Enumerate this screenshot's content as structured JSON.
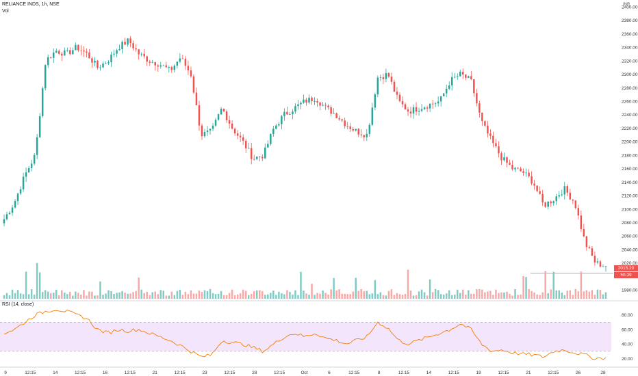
{
  "header": {
    "title": "RELIANCE INDS, 1h, NSE",
    "vol_label": "Vol",
    "currency": "INR",
    "rsi_label": "RSI (14, close)"
  },
  "colors": {
    "up": "#26a69a",
    "down": "#ef5350",
    "vol_up": "#80cbc4",
    "vol_down": "#f7a9a7",
    "rsi_line": "#f57c00",
    "rsi_band": "#f3e5fb",
    "price_badge": "#ef5350",
    "vol_badge": "#ef5350",
    "hline": "#5b9bd5"
  },
  "price_badge": "2015.20",
  "vol_badge": "50.39",
  "chart_data": [
    {
      "type": "candlestick",
      "title": "RELIANCE INDS, 1h, NSE",
      "y_unit": "INR",
      "ylim": [
        1972,
        2404
      ],
      "y_ticks": [
        1980,
        2000,
        2020,
        2040,
        2060,
        2080,
        2100,
        2120,
        2140,
        2160,
        2180,
        2200,
        2220,
        2240,
        2260,
        2280,
        2300,
        2320,
        2340,
        2360,
        2380,
        2400
      ],
      "x_tick_labels": [
        "9",
        "12:15",
        "14",
        "12:15",
        "16",
        "12:15",
        "21",
        "12:15",
        "23",
        "12:15",
        "28",
        "12:15",
        "Oct",
        "6",
        "12:15",
        "8",
        "12:15",
        "14",
        "12:15",
        "19",
        "12:15",
        "21",
        "12:15",
        "26",
        "28"
      ],
      "close_series_keypoints": [
        2085,
        2110,
        2150,
        2180,
        2320,
        2335,
        2330,
        2340,
        2330,
        2310,
        2320,
        2340,
        2350,
        2330,
        2320,
        2315,
        2305,
        2325,
        2300,
        2210,
        2215,
        2250,
        2220,
        2200,
        2175,
        2180,
        2220,
        2240,
        2250,
        2260,
        2265,
        2250,
        2240,
        2225,
        2215,
        2210,
        2295,
        2300,
        2260,
        2245,
        2250,
        2255,
        2260,
        2290,
        2300,
        2290,
        2230,
        2200,
        2175,
        2160,
        2155,
        2140,
        2105,
        2115,
        2130,
        2110,
        2050,
        2020,
        2015.2
      ],
      "volume_scale_max": 100,
      "current_price": 2015.2
    },
    {
      "type": "line",
      "name": "RSI (14, close)",
      "ylim": [
        10,
        92
      ],
      "y_ticks": [
        20,
        40,
        60,
        80
      ],
      "band": [
        30,
        70
      ],
      "keypoints": [
        55,
        60,
        70,
        80,
        85,
        88,
        85,
        80,
        75,
        60,
        55,
        60,
        58,
        60,
        55,
        50,
        45,
        38,
        30,
        22,
        25,
        45,
        42,
        40,
        35,
        30,
        40,
        50,
        55,
        50,
        55,
        48,
        45,
        40,
        45,
        50,
        70,
        62,
        45,
        40,
        45,
        50,
        55,
        60,
        68,
        60,
        40,
        30,
        32,
        28,
        26,
        25,
        22,
        30,
        32,
        28,
        25,
        20,
        21
      ]
    }
  ]
}
